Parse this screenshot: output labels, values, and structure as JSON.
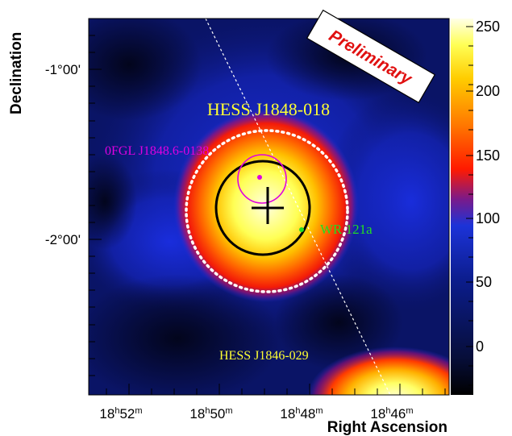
{
  "chart_data": {
    "type": "heatmap",
    "title": "",
    "xlabel": "Right Ascension",
    "ylabel": "Declination",
    "x_ticks": [
      {
        "h": "18",
        "m": "52"
      },
      {
        "h": "18",
        "m": "50"
      },
      {
        "h": "18",
        "m": "48"
      },
      {
        "h": "18",
        "m": "46"
      }
    ],
    "y_ticks": [
      "-1°00'",
      "-2°00'"
    ],
    "colorbar": {
      "range": [
        -35,
        255
      ],
      "ticks": [
        "250",
        "200",
        "150",
        "100",
        "50",
        "0"
      ]
    },
    "stamp": "Preliminary",
    "annotations": {
      "source_main": "HESS J1848-018",
      "source_fermi": "0FGL J1848.6-0138",
      "source_wr": "WR 121a",
      "source_other": "HESS J1846-029"
    },
    "colors": {
      "source_main": "#ffff33",
      "source_fermi": "#e000e0",
      "source_wr": "#22dd22",
      "source_other": "#ffff33",
      "stamp_text": "#e01010"
    }
  }
}
